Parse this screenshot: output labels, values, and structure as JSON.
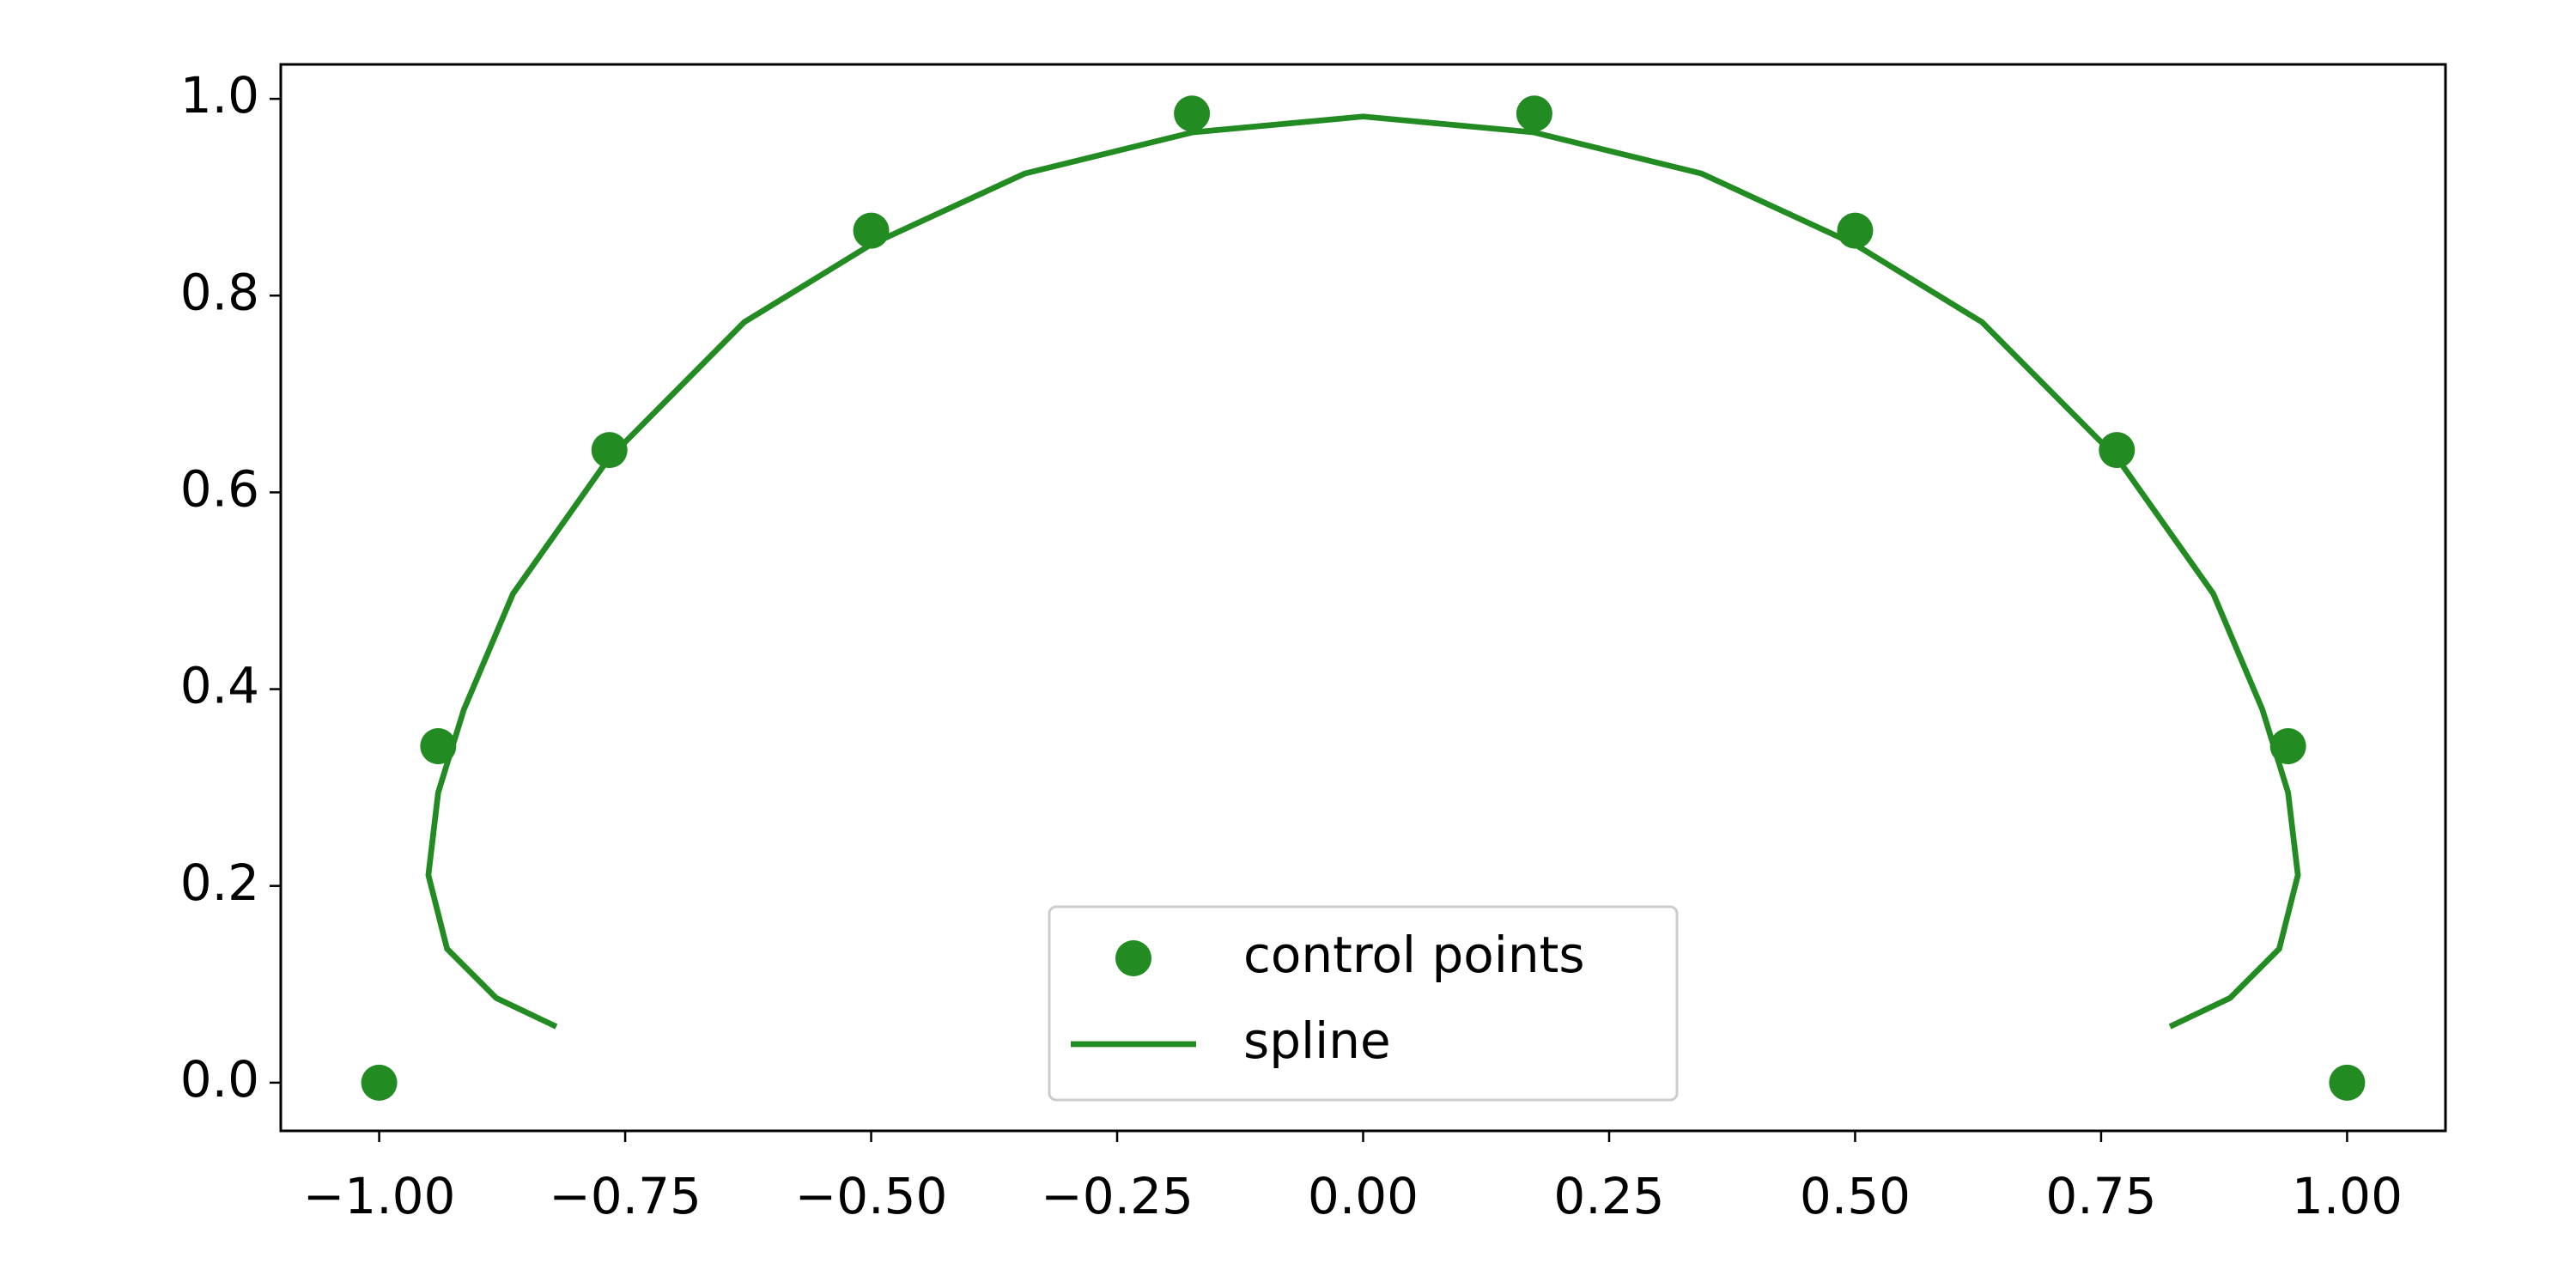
{
  "chart_data": {
    "type": "scatter",
    "series": [
      {
        "name": "control points",
        "type": "scatter",
        "color": "#228b22",
        "x": [
          -1,
          -0.94,
          -0.766,
          -0.5,
          -0.174,
          0.174,
          0.5,
          0.766,
          0.94,
          1
        ],
        "values": [
          0,
          0.342,
          0.643,
          0.866,
          0.985,
          0.985,
          0.866,
          0.643,
          0.342,
          0
        ]
      },
      {
        "name": "spline",
        "type": "line",
        "color": "#228b22",
        "x": [
          -0.82,
          -0.881,
          -0.931,
          -0.95,
          -0.94,
          -0.914,
          -0.864,
          -0.767,
          -0.629,
          -0.5,
          -0.344,
          -0.173,
          0,
          0.173,
          0.344,
          0.5,
          0.629,
          0.767,
          0.864,
          0.914,
          0.94,
          0.95,
          0.931,
          0.881,
          0.82
        ],
        "values": [
          0.057,
          0.086,
          0.136,
          0.211,
          0.295,
          0.379,
          0.497,
          0.634,
          0.773,
          0.852,
          0.924,
          0.966,
          0.982,
          0.966,
          0.924,
          0.852,
          0.773,
          0.634,
          0.497,
          0.379,
          0.295,
          0.211,
          0.136,
          0.086,
          0.057
        ]
      }
    ],
    "xlim": [
      -1.1,
      1.1
    ],
    "ylim": [
      -0.049,
      1.035
    ],
    "xticks": [
      {
        "value": -1,
        "label": "−1.00"
      },
      {
        "value": -0.75,
        "label": "−0.75"
      },
      {
        "value": -0.5,
        "label": "−0.50"
      },
      {
        "value": -0.25,
        "label": "−0.25"
      },
      {
        "value": 0,
        "label": "0.00"
      },
      {
        "value": 0.25,
        "label": "0.25"
      },
      {
        "value": 0.5,
        "label": "0.50"
      },
      {
        "value": 0.75,
        "label": "0.75"
      },
      {
        "value": 1,
        "label": "1.00"
      }
    ],
    "yticks": [
      {
        "value": 0,
        "label": "0.0"
      },
      0.2,
      0.4,
      0.6,
      0.8,
      {
        "value": 1,
        "label": "1.0"
      }
    ],
    "grid": false,
    "legend": "lower center"
  }
}
